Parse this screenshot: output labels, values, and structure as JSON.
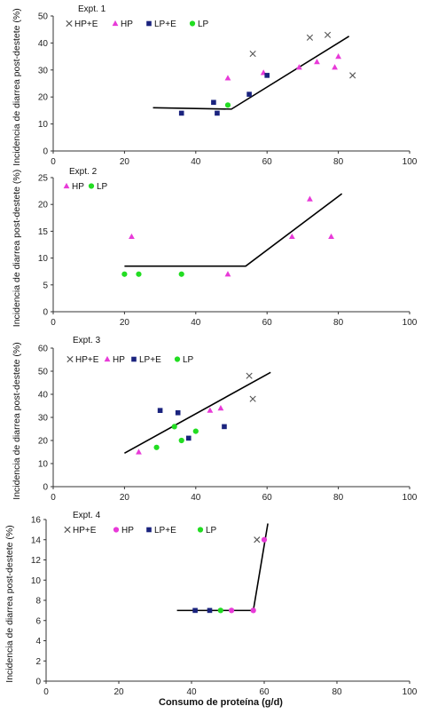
{
  "chart_data": [
    {
      "type": "scatter",
      "title": "Expt. 1",
      "ylabel": "Incidencia de diarrea post-destete (%)",
      "xlabel": "",
      "xlim": [
        0,
        100
      ],
      "ylim": [
        0,
        50
      ],
      "xticks": [
        0,
        20,
        40,
        60,
        80,
        100
      ],
      "yticks": [
        0,
        10,
        20,
        30,
        40,
        50
      ],
      "series": [
        {
          "name": "HP+E",
          "marker": "x",
          "color": "#555555",
          "points": [
            [
              56,
              36
            ],
            [
              72,
              42
            ],
            [
              77,
              43
            ],
            [
              84,
              28
            ]
          ]
        },
        {
          "name": "HP",
          "marker": "triangle",
          "color": "#e83ad8",
          "points": [
            [
              49,
              27
            ],
            [
              59,
              29
            ],
            [
              69,
              31
            ],
            [
              74,
              33
            ],
            [
              79,
              31
            ],
            [
              80,
              35
            ]
          ]
        },
        {
          "name": "LP+E",
          "marker": "square",
          "color": "#1a237e",
          "points": [
            [
              36,
              14
            ],
            [
              45,
              18
            ],
            [
              46,
              14
            ],
            [
              55,
              21
            ],
            [
              60,
              28
            ]
          ]
        },
        {
          "name": "LP",
          "marker": "circle",
          "color": "#22dd22",
          "points": [
            [
              49,
              17
            ]
          ]
        }
      ],
      "fit": [
        [
          28,
          16
        ],
        [
          50,
          15.5
        ],
        [
          83,
          42.5
        ]
      ],
      "grid": false,
      "legend": "top-left"
    },
    {
      "type": "scatter",
      "title": "Expt. 2",
      "ylabel": "Incidencia de diarrea post-destete (%)",
      "xlabel": "",
      "xlim": [
        0,
        100
      ],
      "ylim": [
        0,
        25
      ],
      "xticks": [
        0,
        20,
        40,
        60,
        80,
        100
      ],
      "yticks": [
        0,
        5,
        10,
        15,
        20,
        25
      ],
      "series": [
        {
          "name": "HP",
          "marker": "triangle",
          "color": "#e83ad8",
          "points": [
            [
              22,
              14
            ],
            [
              49,
              7
            ],
            [
              67,
              14
            ],
            [
              72,
              21
            ],
            [
              78,
              14
            ]
          ]
        },
        {
          "name": "LP",
          "marker": "circle",
          "color": "#22dd22",
          "points": [
            [
              20,
              7
            ],
            [
              24,
              7
            ],
            [
              36,
              7
            ]
          ]
        }
      ],
      "fit": [
        [
          20,
          8.5
        ],
        [
          54,
          8.5
        ],
        [
          81,
          22
        ]
      ],
      "grid": false,
      "legend": "top-left"
    },
    {
      "type": "scatter",
      "title": "Expt. 3",
      "ylabel": "Incidencia de diarrea post-destete (%)",
      "xlabel": "",
      "xlim": [
        0,
        100
      ],
      "ylim": [
        0,
        60
      ],
      "xticks": [
        0,
        20,
        40,
        60,
        80,
        100
      ],
      "yticks": [
        0,
        10,
        20,
        30,
        40,
        50,
        60
      ],
      "series": [
        {
          "name": "HP+E",
          "marker": "x",
          "color": "#555555",
          "points": [
            [
              55,
              48
            ],
            [
              56,
              38
            ]
          ]
        },
        {
          "name": "HP",
          "marker": "triangle",
          "color": "#e83ad8",
          "points": [
            [
              24,
              15
            ],
            [
              44,
              33
            ],
            [
              47,
              34
            ]
          ]
        },
        {
          "name": "LP+E",
          "marker": "square",
          "color": "#1a237e",
          "points": [
            [
              30,
              33
            ],
            [
              35,
              32
            ],
            [
              38,
              21
            ],
            [
              48,
              26
            ]
          ]
        },
        {
          "name": "LP",
          "marker": "circle",
          "color": "#22dd22",
          "points": [
            [
              29,
              17
            ],
            [
              34,
              26
            ],
            [
              36,
              20
            ],
            [
              40,
              24
            ]
          ]
        }
      ],
      "fit": [
        [
          20,
          14.5
        ],
        [
          61,
          49.5
        ]
      ],
      "grid": false,
      "legend": "top-left"
    },
    {
      "type": "scatter",
      "title": "Expt. 4",
      "ylabel": "Incidencia de diarrea post-destete (%)",
      "xlabel": "Consumo de proteína (g/d)",
      "xlim": [
        0,
        100
      ],
      "ylim": [
        0,
        16
      ],
      "xticks": [
        0,
        20,
        40,
        60,
        80,
        100
      ],
      "yticks": [
        0,
        2,
        4,
        6,
        8,
        10,
        12,
        14,
        16
      ],
      "series": [
        {
          "name": "HP+E",
          "marker": "x",
          "color": "#555555",
          "points": [
            [
              58,
              14
            ]
          ]
        },
        {
          "name": "HP",
          "marker": "circle",
          "color": "#e83ad8",
          "points": [
            [
              60,
              14
            ],
            [
              51,
              7
            ],
            [
              57,
              7
            ]
          ]
        },
        {
          "name": "LP+E",
          "marker": "square",
          "color": "#1a237e",
          "points": [
            [
              41,
              7
            ],
            [
              45,
              7
            ]
          ]
        },
        {
          "name": "LP",
          "marker": "circle",
          "color": "#22dd22",
          "points": [
            [
              48,
              7
            ]
          ]
        }
      ],
      "fit": [
        [
          36,
          7
        ],
        [
          57,
          7
        ],
        [
          61,
          15.6
        ]
      ],
      "grid": false,
      "legend": "top-left"
    }
  ]
}
